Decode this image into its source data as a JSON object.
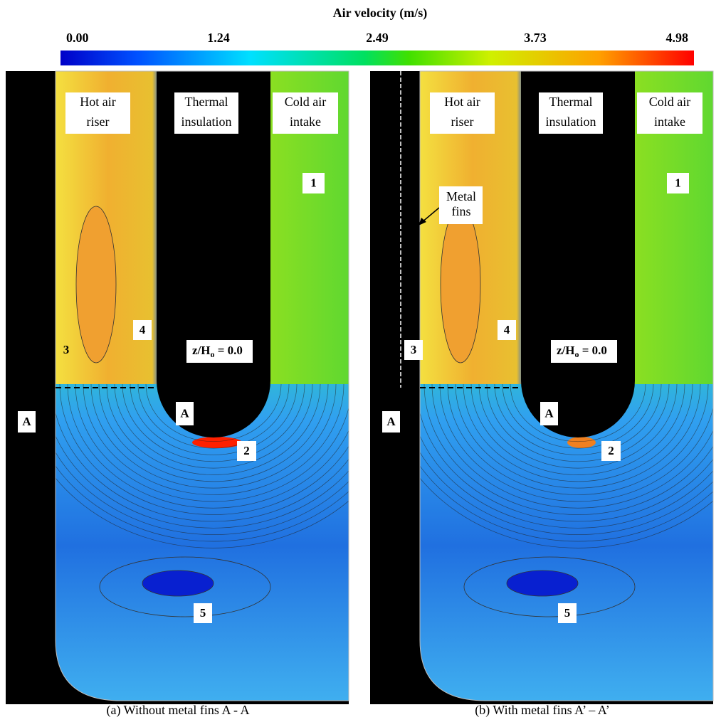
{
  "colorbar": {
    "title": "Air velocity (m/s)",
    "ticks": [
      "0.00",
      "1.24",
      "2.49",
      "3.73",
      "4.98"
    ]
  },
  "panels": [
    {
      "hot": [
        "Hot air",
        "riser"
      ],
      "insulation": [
        "Thermal",
        "insulation"
      ],
      "cold": [
        "Cold air",
        "intake"
      ],
      "n1": "1",
      "n2": "2",
      "n3": "3",
      "n4": "4",
      "n5": "5",
      "a_side": "A",
      "a_mid": "A",
      "z": {
        "base": "z/H",
        "sub": "o",
        "rest": " = 0.0"
      },
      "caption": "(a) Without metal fins A - A"
    },
    {
      "hot": [
        "Hot air",
        "riser"
      ],
      "insulation": [
        "Thermal",
        "insulation"
      ],
      "cold": [
        "Cold air",
        "intake"
      ],
      "n1": "1",
      "n2": "2",
      "n3": "3",
      "n4": "4",
      "n5": "5",
      "a_side": "A",
      "a_mid": "A",
      "z": {
        "base": "z/H",
        "sub": "o",
        "rest": " = 0.0"
      },
      "fins": [
        "Metal",
        "fins"
      ],
      "caption": "(b) With metal fins A’ – A’"
    }
  ]
}
